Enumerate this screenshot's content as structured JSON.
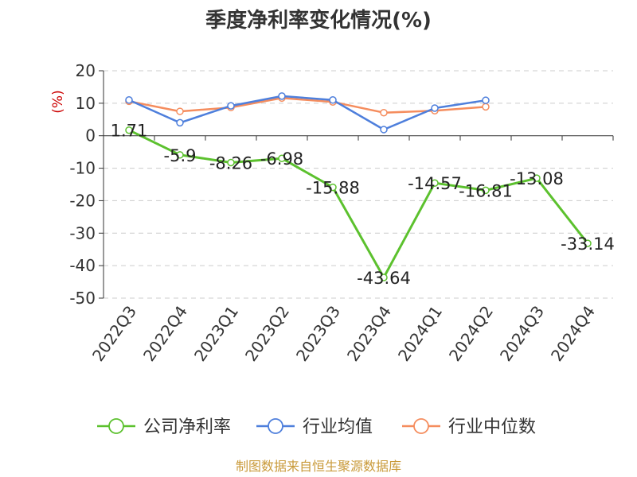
{
  "chart_data": {
    "type": "line",
    "title": "季度净利率变化情况(%)",
    "ylabel": "(%)",
    "ylim": [
      -50,
      20
    ],
    "yticks": [
      20,
      10,
      0,
      -10,
      -20,
      -30,
      -40,
      -50
    ],
    "grid": true,
    "legend_position": "bottom",
    "categories": [
      "2022Q3",
      "2022Q4",
      "2023Q1",
      "2023Q2",
      "2023Q3",
      "2023Q4",
      "2024Q1",
      "2024Q2",
      "2024Q3",
      "2024Q4"
    ],
    "series": [
      {
        "name": "公司净利率",
        "color": "#5cc12e",
        "values": [
          1.71,
          -5.9,
          -8.26,
          -6.98,
          -15.88,
          -43.64,
          -14.57,
          -16.81,
          -13.08,
          -33.14
        ],
        "labels": [
          "1.71",
          "-5.9",
          "-8.26",
          "-6.98",
          "-15.88",
          "-43.64",
          "-14.57",
          "-16.81",
          "-13.08",
          "-33.14"
        ]
      },
      {
        "name": "行业均值",
        "color": "#4e7fdc",
        "values": [
          11.0,
          4.0,
          9.2,
          12.2,
          11.0,
          1.9,
          8.5,
          10.9,
          null,
          null
        ]
      },
      {
        "name": "行业中位数",
        "color": "#f58d5e",
        "values": [
          10.6,
          7.5,
          8.7,
          11.6,
          10.4,
          7.1,
          7.7,
          8.9,
          null,
          null
        ]
      }
    ]
  },
  "footer": {
    "source": "制图数据来自恒生聚源数据库"
  }
}
